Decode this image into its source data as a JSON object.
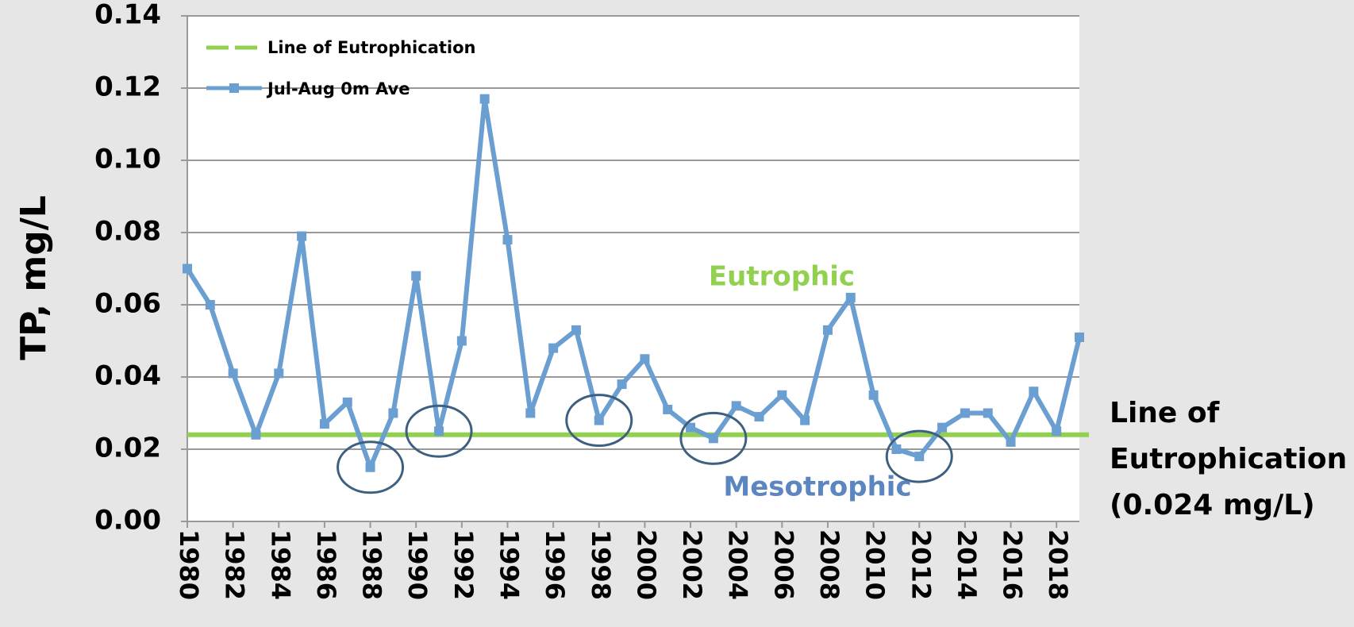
{
  "chart_data": {
    "type": "line",
    "y_label": "TP, mg/L",
    "x": [
      1980,
      1981,
      1982,
      1983,
      1984,
      1985,
      1986,
      1987,
      1988,
      1989,
      1990,
      1991,
      1992,
      1993,
      1994,
      1995,
      1996,
      1997,
      1998,
      1999,
      2000,
      2001,
      2002,
      2003,
      2004,
      2005,
      2006,
      2007,
      2008,
      2009,
      2010,
      2011,
      2012,
      2013,
      2014,
      2015,
      2016,
      2017,
      2018,
      2019
    ],
    "series": [
      {
        "name": "Jul-Aug 0m Ave",
        "color": "#6b9fd2",
        "values": [
          0.07,
          0.06,
          0.041,
          0.024,
          0.041,
          0.079,
          0.027,
          0.033,
          0.015,
          0.03,
          0.068,
          0.025,
          0.05,
          0.117,
          0.078,
          0.03,
          0.048,
          0.053,
          0.028,
          0.038,
          0.045,
          0.031,
          0.026,
          0.023,
          0.032,
          0.029,
          0.035,
          0.028,
          0.053,
          0.062,
          0.035,
          0.02,
          0.018,
          0.026,
          0.03,
          0.03,
          0.022,
          0.036,
          0.025,
          0.051
        ]
      }
    ],
    "reference_line": {
      "name": "Line of Eutrophication",
      "value": 0.024,
      "color": "#92d050"
    },
    "highlighted_x": [
      1988,
      1991,
      1998,
      2003,
      2012
    ],
    "annotations": {
      "upper": "Eutrophic",
      "lower": "Mesotrophic",
      "reference": [
        "Line of",
        "Eutrophication",
        "(0.024 mg/L)"
      ]
    },
    "xlim": [
      1980,
      2019
    ],
    "xticks": [
      1980,
      1982,
      1984,
      1986,
      1988,
      1990,
      1992,
      1994,
      1996,
      1998,
      2000,
      2002,
      2004,
      2006,
      2008,
      2010,
      2012,
      2014,
      2016,
      2018
    ],
    "ylim": [
      0,
      0.14
    ],
    "yticks": [
      {
        "value": 0,
        "label": "0.00"
      },
      0.02,
      0.04,
      0.06,
      0.08,
      {
        "value": 0.1,
        "label": "0.10"
      },
      0.12,
      0.14
    ],
    "grid": true,
    "legend": "top-left"
  }
}
